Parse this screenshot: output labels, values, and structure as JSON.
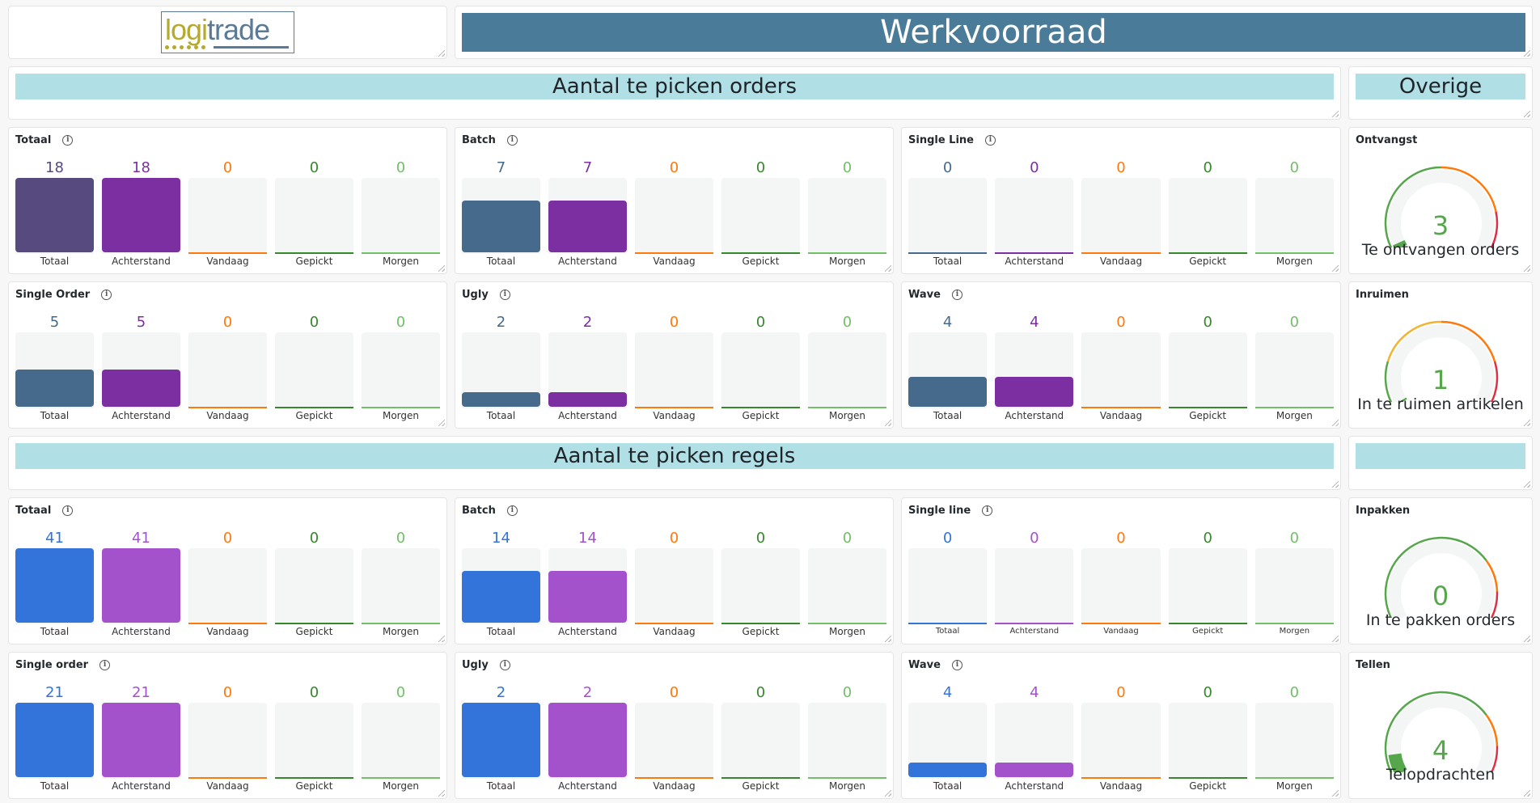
{
  "logo": {
    "text_a": "logi",
    "text_b": "trade"
  },
  "header": {
    "title": "Werkvoorraad"
  },
  "sections": {
    "orders": "Aantal te picken orders",
    "overige": "Overige",
    "regels": "Aantal te picken regels",
    "blank": ""
  },
  "colors": {
    "orange": "#ff780a",
    "green": "#37872d",
    "lightgreen": "#73bf69",
    "orders_blue": "#466a8c",
    "orders_purple": "#7b2fa0",
    "orders_total": "#574a7e",
    "lines_blue": "#3274d9",
    "lines_purple": "#a352cc",
    "header": "#4a7c99",
    "banner": "#b0dfe5"
  },
  "panels": [
    {
      "title": "Totaal",
      "row": 3,
      "col": 1,
      "max": 18,
      "colors": [
        "#574a7e",
        "#7b2fa0"
      ],
      "bars": [
        {
          "label": "Totaal",
          "value": 18
        },
        {
          "label": "Achterstand",
          "value": 18
        },
        {
          "label": "Vandaag",
          "value": 0
        },
        {
          "label": "Gepickt",
          "value": 0
        },
        {
          "label": "Morgen",
          "value": 0
        }
      ]
    },
    {
      "title": "Batch",
      "row": 3,
      "col": 2,
      "max": 10,
      "colors": [
        "#466a8c",
        "#7b2fa0"
      ],
      "bars": [
        {
          "label": "Totaal",
          "value": 7
        },
        {
          "label": "Achterstand",
          "value": 7
        },
        {
          "label": "Vandaag",
          "value": 0
        },
        {
          "label": "Gepickt",
          "value": 0
        },
        {
          "label": "Morgen",
          "value": 0
        }
      ]
    },
    {
      "title": "Single Line",
      "row": 3,
      "col": 3,
      "max": 10,
      "colors": [
        "#466a8c",
        "#7b2fa0"
      ],
      "bars": [
        {
          "label": "Totaal",
          "value": 0
        },
        {
          "label": "Achterstand",
          "value": 0
        },
        {
          "label": "Vandaag",
          "value": 0
        },
        {
          "label": "Gepickt",
          "value": 0
        },
        {
          "label": "Morgen",
          "value": 0
        }
      ]
    },
    {
      "title": "Single Order",
      "row": 4,
      "col": 1,
      "max": 10,
      "colors": [
        "#466a8c",
        "#7b2fa0"
      ],
      "bars": [
        {
          "label": "Totaal",
          "value": 5
        },
        {
          "label": "Achterstand",
          "value": 5
        },
        {
          "label": "Vandaag",
          "value": 0
        },
        {
          "label": "Gepickt",
          "value": 0
        },
        {
          "label": "Morgen",
          "value": 0
        }
      ]
    },
    {
      "title": "Ugly",
      "row": 4,
      "col": 2,
      "max": 10,
      "colors": [
        "#466a8c",
        "#7b2fa0"
      ],
      "bars": [
        {
          "label": "Totaal",
          "value": 2
        },
        {
          "label": "Achterstand",
          "value": 2
        },
        {
          "label": "Vandaag",
          "value": 0
        },
        {
          "label": "Gepickt",
          "value": 0
        },
        {
          "label": "Morgen",
          "value": 0
        }
      ]
    },
    {
      "title": "Wave",
      "row": 4,
      "col": 3,
      "max": 10,
      "colors": [
        "#466a8c",
        "#7b2fa0"
      ],
      "bars": [
        {
          "label": "Totaal",
          "value": 4
        },
        {
          "label": "Achterstand",
          "value": 4
        },
        {
          "label": "Vandaag",
          "value": 0
        },
        {
          "label": "Gepickt",
          "value": 0
        },
        {
          "label": "Morgen",
          "value": 0
        }
      ]
    },
    {
      "title": "Totaal",
      "row": 6,
      "col": 1,
      "max": 41,
      "colors": [
        "#3274d9",
        "#a352cc"
      ],
      "bars": [
        {
          "label": "Totaal",
          "value": 41
        },
        {
          "label": "Achterstand",
          "value": 41
        },
        {
          "label": "Vandaag",
          "value": 0
        },
        {
          "label": "Gepickt",
          "value": 0
        },
        {
          "label": "Morgen",
          "value": 0
        }
      ]
    },
    {
      "title": "Batch",
      "row": 6,
      "col": 2,
      "max": 20,
      "colors": [
        "#3274d9",
        "#a352cc"
      ],
      "bars": [
        {
          "label": "Totaal",
          "value": 14
        },
        {
          "label": "Achterstand",
          "value": 14
        },
        {
          "label": "Vandaag",
          "value": 0
        },
        {
          "label": "Gepickt",
          "value": 0
        },
        {
          "label": "Morgen",
          "value": 0
        }
      ]
    },
    {
      "title": "Single line",
      "row": 6,
      "col": 3,
      "max": 20,
      "small": true,
      "colors": [
        "#3274d9",
        "#a352cc"
      ],
      "bars": [
        {
          "label": "Totaal",
          "value": 0
        },
        {
          "label": "Achterstand",
          "value": 0
        },
        {
          "label": "Vandaag",
          "value": 0
        },
        {
          "label": "Gepickt",
          "value": 0
        },
        {
          "label": "Morgen",
          "value": 0
        }
      ]
    },
    {
      "title": "Single order",
      "row": 7,
      "col": 1,
      "max": 21,
      "colors": [
        "#3274d9",
        "#a352cc"
      ],
      "bars": [
        {
          "label": "Totaal",
          "value": 21
        },
        {
          "label": "Achterstand",
          "value": 21
        },
        {
          "label": "Vandaag",
          "value": 0
        },
        {
          "label": "Gepickt",
          "value": 0
        },
        {
          "label": "Morgen",
          "value": 0
        }
      ]
    },
    {
      "title": "Ugly",
      "row": 7,
      "col": 2,
      "max": 2,
      "colors": [
        "#3274d9",
        "#a352cc"
      ],
      "bars": [
        {
          "label": "Totaal",
          "value": 2
        },
        {
          "label": "Achterstand",
          "value": 2
        },
        {
          "label": "Vandaag",
          "value": 0
        },
        {
          "label": "Gepickt",
          "value": 0
        },
        {
          "label": "Morgen",
          "value": 0
        }
      ]
    },
    {
      "title": "Wave",
      "row": 7,
      "col": 3,
      "max": 20,
      "colors": [
        "#3274d9",
        "#a352cc"
      ],
      "bars": [
        {
          "label": "Totaal",
          "value": 4
        },
        {
          "label": "Achterstand",
          "value": 4
        },
        {
          "label": "Vandaag",
          "value": 0
        },
        {
          "label": "Gepickt",
          "value": 0
        },
        {
          "label": "Morgen",
          "value": 0
        }
      ]
    }
  ],
  "gauges": [
    {
      "title": "Ontvangst",
      "row": 3,
      "value": 3,
      "max": 100,
      "text": "Te ontvangen orders",
      "thresholds": [
        [
          0.5,
          "#56a64b"
        ],
        [
          0.82,
          "#ff780a"
        ],
        [
          1,
          "#e02f44"
        ]
      ]
    },
    {
      "title": "Inruimen",
      "row": 4,
      "value": 1,
      "max": 100,
      "text": "In te ruimen artikelen",
      "thresholds": [
        [
          0.2,
          "#56a64b"
        ],
        [
          0.5,
          "#f2b330"
        ],
        [
          0.8,
          "#ff780a"
        ],
        [
          1,
          "#e02f44"
        ]
      ]
    },
    {
      "title": "Inpakken",
      "row": 6,
      "value": 0,
      "max": 100,
      "text": "In te pakken orders",
      "thresholds": [
        [
          0.72,
          "#56a64b"
        ],
        [
          0.86,
          "#ff780a"
        ],
        [
          1,
          "#e02f44"
        ]
      ]
    },
    {
      "title": "Tellen",
      "row": 7,
      "value": 4,
      "max": 40,
      "text": "Telopdrachten",
      "thresholds": [
        [
          0.72,
          "#56a64b"
        ],
        [
          0.86,
          "#ff780a"
        ],
        [
          1,
          "#e02f44"
        ]
      ]
    }
  ]
}
